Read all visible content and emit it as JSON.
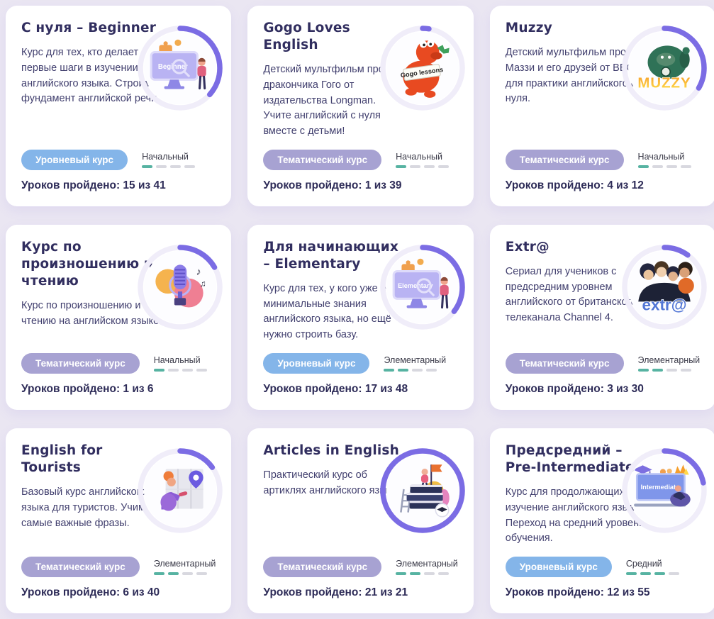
{
  "theme": {
    "page_bg": "#eae6f2",
    "card_bg": "#ffffff",
    "accent_purple": "#7b6ce4",
    "ring_track": "#f0edf9",
    "badge_level_bg": "#84b5e9",
    "badge_theme_bg": "#a7a2d2",
    "dash_on": "#57b3a2",
    "dash_off": "#d8d8df",
    "title_color": "#312e5f"
  },
  "cards": [
    {
      "title": "С нуля – Beginner",
      "description": "Курс для тех, кто делает первые шаги в изучении английского языка. Строим фундамент английской речи.",
      "badge": "Уровневый курс",
      "badge_type": "level",
      "level": "Начальный",
      "level_value": 1,
      "level_max": 4,
      "lessons_done": 15,
      "lessons_total": 41,
      "progress_label": "Уроков пройдено: 15 из 41",
      "illustration": "monitor-beginner",
      "illustration_label": "Beginner"
    },
    {
      "title": "Gogo Loves English",
      "description": "Детский мультфильм про дракончика Гого от издательства Longman. Учите английский с нуля вместе с детьми!",
      "badge": "Тематический курс",
      "badge_type": "theme",
      "level": "Начальный",
      "level_value": 1,
      "level_max": 4,
      "lessons_done": 1,
      "lessons_total": 39,
      "progress_label": "Уроков пройдено: 1 из 39",
      "illustration": "gogo-dragon",
      "illustration_label": "Gogo lessons"
    },
    {
      "title": "Muzzy",
      "description": "Детский мультфильм про Маззи и его друзей от BBC для практики английского с нуля.",
      "badge": "Тематический курс",
      "badge_type": "theme",
      "level": "Начальный",
      "level_value": 1,
      "level_max": 4,
      "lessons_done": 4,
      "lessons_total": 12,
      "progress_label": "Уроков пройдено: 4 из 12",
      "illustration": "muzzy-monster",
      "illustration_label": "MUZZY"
    },
    {
      "title": "Курс по произношению и чтению",
      "description": "Курс по произношению и чтению на английском языке.",
      "badge": "Тематический курс",
      "badge_type": "theme",
      "level": "Начальный",
      "level_value": 1,
      "level_max": 4,
      "lessons_done": 1,
      "lessons_total": 6,
      "progress_label": "Уроков пройдено: 1 из 6",
      "illustration": "microphone",
      "illustration_label": ""
    },
    {
      "title": "Для начинающих – Elementary",
      "description": "Курс для тех, у кого уже есть минимальные знания английского языка, но ещё нужно строить базу.",
      "badge": "Уровневый курс",
      "badge_type": "level",
      "level": "Элементарный",
      "level_value": 2,
      "level_max": 4,
      "lessons_done": 17,
      "lessons_total": 48,
      "progress_label": "Уроков пройдено: 17 из 48",
      "illustration": "monitor-elementary",
      "illustration_label": "Elementary"
    },
    {
      "title": "Extr@",
      "description": "Сериал для учеников с предсредним уровнем английского от британского телеканала Channel 4.",
      "badge": "Тематический курс",
      "badge_type": "theme",
      "level": "Элементарный",
      "level_value": 2,
      "level_max": 4,
      "lessons_done": 3,
      "lessons_total": 30,
      "progress_label": "Уроков пройдено: 3 из 30",
      "illustration": "extra-photo",
      "illustration_label": "extr@"
    },
    {
      "title": "English for Tourists",
      "description": "Базовый курс английского языка для туристов. Учим самые важные фразы.",
      "badge": "Тематический курс",
      "badge_type": "theme",
      "level": "Элементарный",
      "level_value": 2,
      "level_max": 4,
      "lessons_done": 6,
      "lessons_total": 40,
      "progress_label": "Уроков пройдено: 6 из 40",
      "illustration": "tourist-map",
      "illustration_label": ""
    },
    {
      "title": "Articles in English",
      "description": "Практический курс об артиклях английского языка.",
      "badge": "Тематический курс",
      "badge_type": "theme",
      "level": "Элементарный",
      "level_value": 2,
      "level_max": 4,
      "lessons_done": 21,
      "lessons_total": 21,
      "progress_label": "Уроков пройдено: 21 из 21",
      "illustration": "books-stack",
      "illustration_label": ""
    },
    {
      "title": "Предсредний – Pre-Intermediate",
      "description": "Курс для продолжающих изучение английского языка. Переход на средний уровень обучения.",
      "badge": "Уровневый курс",
      "badge_type": "level",
      "level": "Средний",
      "level_value": 3,
      "level_max": 4,
      "lessons_done": 12,
      "lessons_total": 55,
      "progress_label": "Уроков пройдено: 12 из 55",
      "illustration": "monitor-intermediate",
      "illustration_label": "Intermediate"
    }
  ]
}
